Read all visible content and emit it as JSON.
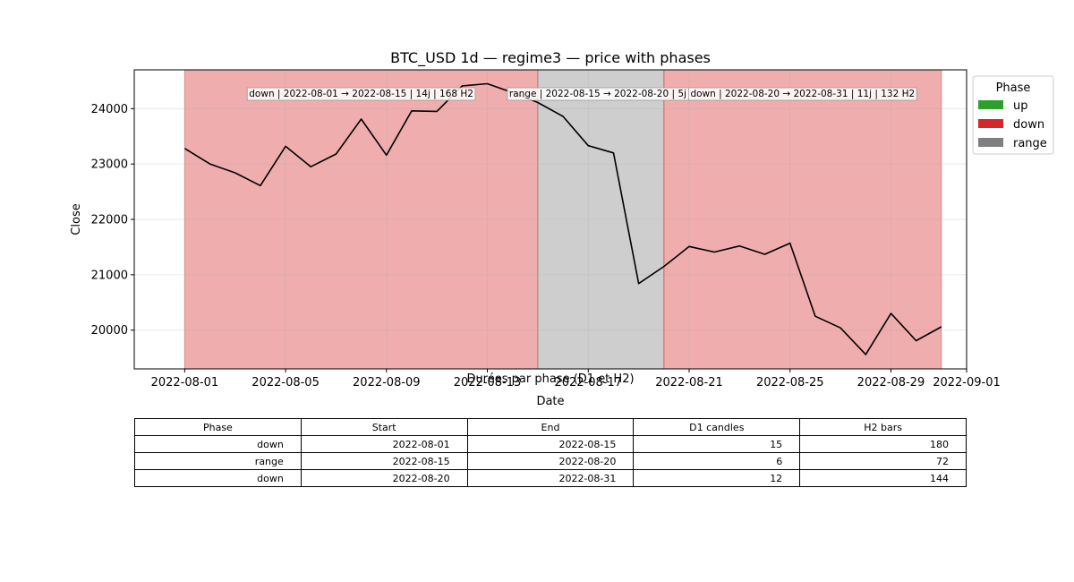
{
  "chart_data": {
    "type": "line",
    "title": "BTC_USD 1d — regime3 — price with phases",
    "xlabel": "Date",
    "ylabel": "Close",
    "xlim": [
      "2022-07-30",
      "2022-09-01"
    ],
    "ylim": [
      19300,
      24700
    ],
    "grid": true,
    "x_ticks": [
      "2022-08-01",
      "2022-08-05",
      "2022-08-09",
      "2022-08-13",
      "2022-08-17",
      "2022-08-21",
      "2022-08-25",
      "2022-08-29",
      "2022-09-01"
    ],
    "y_ticks": [
      20000,
      21000,
      22000,
      23000,
      24000
    ],
    "series": [
      {
        "color": "#000000",
        "x": [
          "2022-08-01",
          "2022-08-02",
          "2022-08-03",
          "2022-08-04",
          "2022-08-05",
          "2022-08-06",
          "2022-08-07",
          "2022-08-08",
          "2022-08-09",
          "2022-08-10",
          "2022-08-11",
          "2022-08-12",
          "2022-08-13",
          "2022-08-14",
          "2022-08-15",
          "2022-08-16",
          "2022-08-17",
          "2022-08-18",
          "2022-08-19",
          "2022-08-20",
          "2022-08-21",
          "2022-08-22",
          "2022-08-23",
          "2022-08-24",
          "2022-08-25",
          "2022-08-26",
          "2022-08-27",
          "2022-08-28",
          "2022-08-29",
          "2022-08-30",
          "2022-08-31"
        ],
        "values": [
          23280,
          23000,
          22840,
          22610,
          23320,
          22950,
          23180,
          23810,
          23160,
          23960,
          23950,
          24410,
          24450,
          24290,
          24110,
          23860,
          23330,
          23200,
          20840,
          21150,
          21510,
          21410,
          21520,
          21370,
          21570,
          20250,
          20040,
          19560,
          20300,
          19810,
          20060
        ]
      }
    ],
    "phases": [
      {
        "type": "down",
        "start": "2022-08-01",
        "end": "2022-08-15",
        "label": "down | 2022-08-01 → 2022-08-15 | 14j | 168 H2"
      },
      {
        "type": "range",
        "start": "2022-08-15",
        "end": "2022-08-20",
        "label": "range | 2022-08-15 → 2022-08-20 | 5j |"
      },
      {
        "type": "down",
        "start": "2022-08-20",
        "end": "2022-08-31",
        "label": "down | 2022-08-20 → 2022-08-31 | 11j | 132 H2"
      }
    ],
    "phase_colors": {
      "up": "#2ca02c",
      "down": "#d62728",
      "range": "#7f7f7f"
    },
    "legend": {
      "title": "Phase",
      "position": "outside-top-right",
      "entries": [
        {
          "label": "up",
          "color": "#2ca02c"
        },
        {
          "label": "down",
          "color": "#d62728"
        },
        {
          "label": "range",
          "color": "#7f7f7f"
        }
      ]
    }
  },
  "table": {
    "title": "Durées par phase (D1 et H2)",
    "headers": [
      "Phase",
      "Start",
      "End",
      "D1 candles",
      "H2 bars"
    ],
    "rows": [
      [
        "down",
        "2022-08-01",
        "2022-08-15",
        "15",
        "180"
      ],
      [
        "range",
        "2022-08-15",
        "2022-08-20",
        "6",
        "72"
      ],
      [
        "down",
        "2022-08-20",
        "2022-08-31",
        "12",
        "144"
      ]
    ]
  }
}
